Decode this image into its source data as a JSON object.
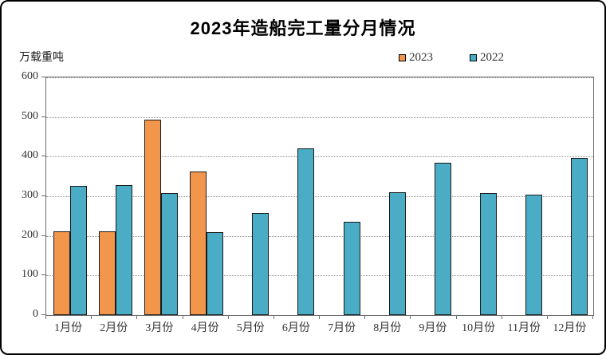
{
  "window": {
    "background_color": "#ffffff",
    "border_color": "#000000"
  },
  "chart_data": {
    "type": "bar",
    "title": "2023年造船完工量分月情况",
    "unit_label": "万载重吨",
    "xlabel": "",
    "ylabel": "万载重吨",
    "categories": [
      "1月份",
      "2月份",
      "3月份",
      "4月份",
      "5月份",
      "6月份",
      "7月份",
      "8月份",
      "9月份",
      "10月份",
      "11月份",
      "12月份"
    ],
    "series": [
      {
        "name": "2023",
        "color": "#F2964B",
        "values": [
          211,
          211,
          493,
          363,
          null,
          null,
          null,
          null,
          null,
          null,
          null,
          null
        ]
      },
      {
        "name": "2022",
        "color": "#4BACC6",
        "values": [
          327,
          328,
          308,
          209,
          257,
          420,
          236,
          310,
          385,
          308,
          304,
          396
        ]
      }
    ],
    "ylim": [
      0,
      600
    ],
    "ytick_step": 100,
    "ytick_labels": [
      "0",
      "100",
      "200",
      "300",
      "400",
      "500",
      "600"
    ],
    "grid": "horizontal-dotted",
    "legend_position": "top-right",
    "bar_border_color": "#1a1a1a",
    "gridline_color": "#909090",
    "axis_color": "#6e6e6e"
  }
}
